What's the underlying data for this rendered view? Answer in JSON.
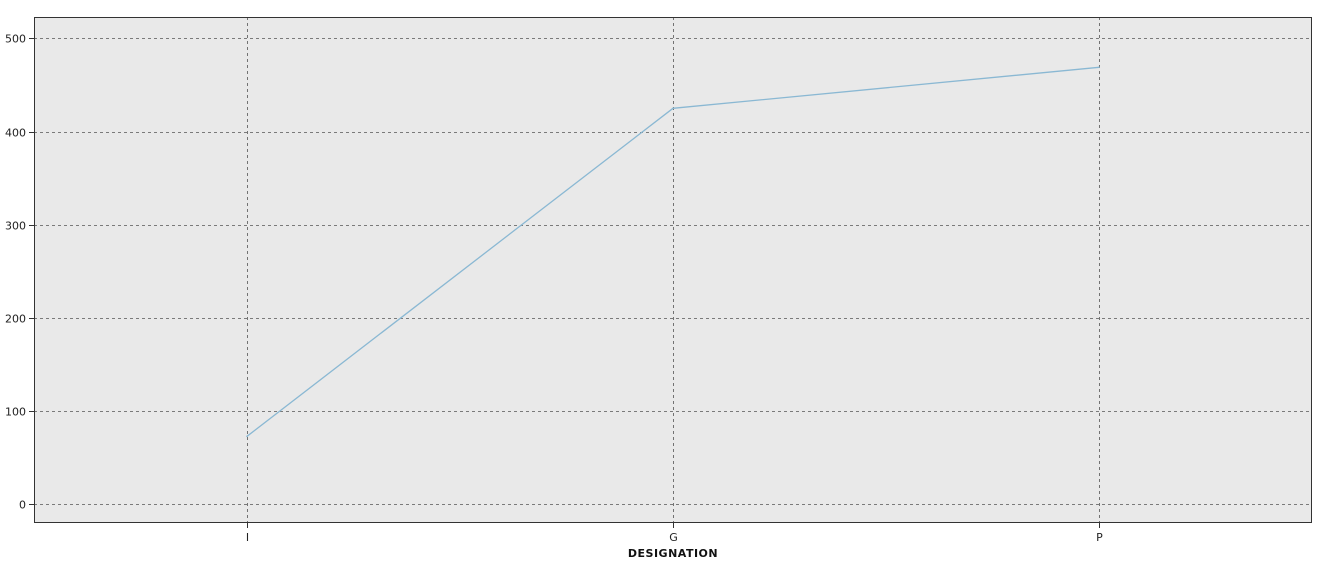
{
  "chart_data": {
    "type": "line",
    "title": "",
    "xlabel": "DESIGNATION",
    "ylabel": "",
    "categories": [
      "I",
      "G",
      "P"
    ],
    "series": [
      {
        "values": [
          73,
          425,
          469
        ]
      }
    ],
    "ylim": [
      -20,
      523
    ],
    "yticks": [
      0,
      100,
      200,
      300,
      400,
      500
    ],
    "grid": true,
    "legend": "none",
    "colors": {
      "line": "#8ab8d3",
      "plot_background": "#e9e9e9",
      "grid": "#555555",
      "frame": "#333333"
    }
  }
}
